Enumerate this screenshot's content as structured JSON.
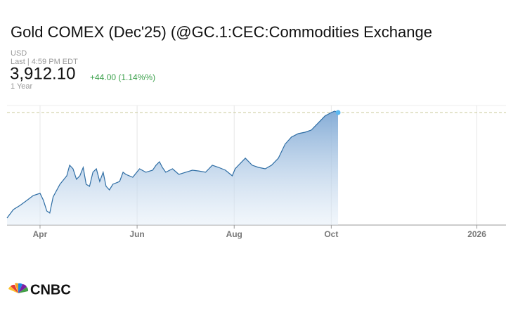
{
  "chart_data": {
    "type": "area",
    "title": "Gold COMEX (Dec'25) (@GC.1:CEC:Commodities Exchange",
    "currency": "USD",
    "timestamp": "Last | 4:59 PM EDT",
    "last": {
      "value": 3912.1,
      "label": "3,912.10"
    },
    "change": "+44.00 (1.14%%)",
    "range": "1 Year",
    "logo": "CNBC",
    "color": "#2e6da4",
    "x": [
      3.32,
      3.45,
      3.59,
      3.73,
      3.86,
      4.0,
      4.07,
      4.14,
      4.2,
      4.27,
      4.41,
      4.55,
      4.61,
      4.68,
      4.75,
      4.82,
      4.89,
      4.95,
      5.02,
      5.09,
      5.16,
      5.23,
      5.3,
      5.36,
      5.43,
      5.5,
      5.64,
      5.71,
      5.77,
      5.91,
      6.05,
      6.18,
      6.32,
      6.39,
      6.46,
      6.52,
      6.59,
      6.73,
      6.86,
      7.0,
      7.14,
      7.27,
      7.41,
      7.55,
      7.68,
      7.82,
      7.96,
      8.02,
      8.09,
      8.23,
      8.37,
      8.5,
      8.64,
      8.77,
      8.91,
      9.05,
      9.18,
      9.32,
      9.46,
      9.59,
      9.73,
      9.87,
      10.0,
      10.07,
      10.14
    ],
    "values": [
      2937,
      3015,
      3054,
      3100,
      3145,
      3165,
      3100,
      3002,
      2983,
      3132,
      3249,
      3327,
      3425,
      3392,
      3295,
      3327,
      3405,
      3249,
      3230,
      3360,
      3392,
      3275,
      3360,
      3230,
      3197,
      3249,
      3275,
      3360,
      3340,
      3314,
      3392,
      3360,
      3379,
      3425,
      3457,
      3405,
      3360,
      3392,
      3340,
      3360,
      3379,
      3372,
      3360,
      3425,
      3405,
      3379,
      3327,
      3392,
      3425,
      3490,
      3425,
      3405,
      3392,
      3425,
      3490,
      3620,
      3685,
      3717,
      3730,
      3750,
      3815,
      3880,
      3912,
      3925,
      3912.1
    ],
    "xlim": [
      3.32,
      13.6
    ],
    "ylim": [
      2872,
      3977
    ],
    "xticks": [
      {
        "value": 4,
        "label": "Apr"
      },
      {
        "value": 6,
        "label": "Jun"
      },
      {
        "value": 8,
        "label": "Aug"
      },
      {
        "value": 10,
        "label": "Oct"
      },
      {
        "value": 13,
        "label": "2026"
      }
    ]
  }
}
